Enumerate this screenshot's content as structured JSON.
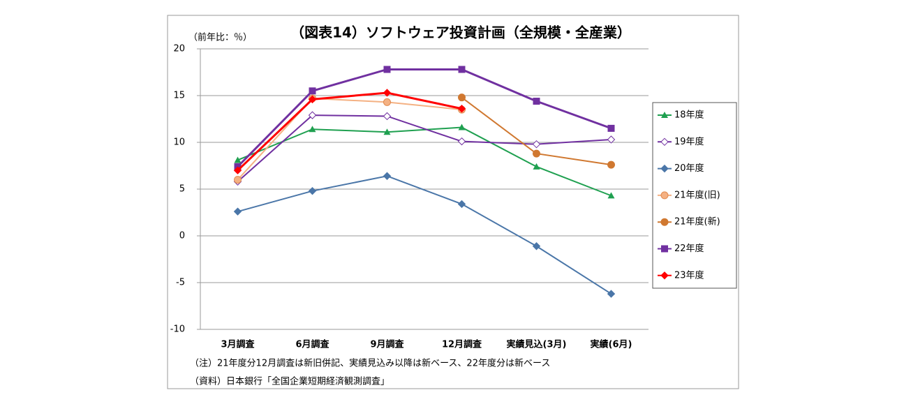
{
  "chart_data": {
    "type": "line",
    "title": "（図表14）ソフトウェア投資計画（全規模・全産業）",
    "y_label": "（前年比：％）",
    "notes": [
      "（注）21年度分12月調査は新旧併記、実績見込み以降は新ベース、22年度分は新ベース",
      "（資料）日本銀行「全国企業短期経済観測調査」"
    ],
    "categories": [
      "3月調査",
      "6月調査",
      "9月調査",
      "12月調査",
      "実績見込(3月)",
      "実績(6月)"
    ],
    "ylim": [
      -10,
      20
    ],
    "yticks": [
      -10,
      -5,
      0,
      5,
      10,
      15,
      20
    ],
    "grid": true,
    "negative_tick_color": "#ff0000",
    "legend": "right",
    "series": [
      {
        "name": "18年度",
        "color": "#1fa050",
        "marker": "triangle",
        "values": [
          8.1,
          11.4,
          11.1,
          11.6,
          7.4,
          4.3
        ]
      },
      {
        "name": "19年度",
        "color": "#7030a0",
        "marker": "diamond-open",
        "values": [
          5.8,
          12.9,
          12.8,
          10.1,
          9.8,
          10.3
        ]
      },
      {
        "name": "20年度",
        "color": "#4a76a8",
        "marker": "diamond",
        "values": [
          2.6,
          4.8,
          6.4,
          3.4,
          -1.1,
          -6.2
        ]
      },
      {
        "name": "21年度(旧)",
        "color": "#f4b183",
        "marker": "circle",
        "values": [
          6.0,
          14.7,
          14.3,
          13.5,
          null,
          null
        ]
      },
      {
        "name": "21年度(新)",
        "color": "#d07830",
        "marker": "circle",
        "values": [
          null,
          null,
          null,
          14.8,
          8.8,
          7.6
        ]
      },
      {
        "name": "22年度",
        "color": "#7030a0",
        "marker": "square",
        "values": [
          7.4,
          15.5,
          17.8,
          17.8,
          14.4,
          11.5
        ]
      },
      {
        "name": "23年度",
        "color": "#ff0000",
        "marker": "diamond",
        "values": [
          7.0,
          14.6,
          15.3,
          13.6,
          null,
          null
        ]
      }
    ]
  }
}
